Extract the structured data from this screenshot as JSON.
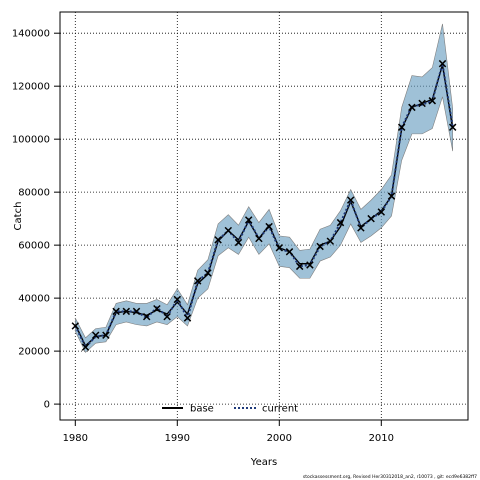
{
  "chart_data": {
    "type": "line",
    "title": "",
    "xlabel": "Years",
    "ylabel": "Catch",
    "xlim": [
      1978.5,
      2018.5
    ],
    "ylim": [
      -6000,
      148000
    ],
    "x_ticks": [
      1980,
      1990,
      2000,
      2010
    ],
    "y_ticks": [
      0,
      20000,
      40000,
      60000,
      80000,
      100000,
      120000,
      140000
    ],
    "grid": true,
    "legend_position": "bottom-center",
    "x": [
      1980,
      1981,
      1982,
      1983,
      1984,
      1985,
      1986,
      1987,
      1988,
      1989,
      1990,
      1991,
      1992,
      1993,
      1994,
      1995,
      1996,
      1997,
      1998,
      1999,
      2000,
      2001,
      2002,
      2003,
      2004,
      2005,
      2006,
      2007,
      2008,
      2009,
      2010,
      2011,
      2012,
      2013,
      2014,
      2015,
      2016,
      2017
    ],
    "series": [
      {
        "name": "base",
        "line_style": "solid",
        "color": "#000000",
        "values": [
          30000,
          22000,
          25500,
          26000,
          34500,
          35000,
          34500,
          33500,
          35500,
          34000,
          38500,
          34000,
          45500,
          49000,
          61500,
          65500,
          62000,
          69000,
          62500,
          67500,
          59000,
          57500,
          53000,
          53000,
          60000,
          61500,
          67000,
          76500,
          67000,
          70000,
          73000,
          78500,
          104000,
          112000,
          113500,
          115000,
          128000,
          104000
        ]
      },
      {
        "name": "current",
        "line_style": "dotted",
        "color": "#1f3a7a",
        "values": [
          29500,
          21500,
          25500,
          26000,
          35000,
          35000,
          35000,
          32500,
          36500,
          33000,
          39500,
          32500,
          46500,
          49500,
          62000,
          65500,
          61000,
          69500,
          62500,
          67000,
          58500,
          57500,
          52000,
          52500,
          59500,
          61500,
          68500,
          77000,
          66500,
          70000,
          72500,
          78500,
          104500,
          112500,
          113000,
          114500,
          128500,
          104500
        ]
      }
    ],
    "band": {
      "color": "#6b9fc1",
      "edge_color": "#7f7f7f",
      "lower": [
        27500,
        19500,
        23000,
        23500,
        30000,
        31000,
        30000,
        29500,
        31000,
        30000,
        33000,
        29500,
        40000,
        43500,
        56000,
        59000,
        56500,
        63000,
        56500,
        60500,
        52000,
        51500,
        47500,
        47500,
        54000,
        55500,
        60000,
        68000,
        61000,
        63500,
        66500,
        71000,
        92000,
        102000,
        102000,
        104000,
        116000,
        95500
      ],
      "upper": [
        32500,
        25000,
        28500,
        29000,
        38000,
        39000,
        38000,
        38000,
        39500,
        37500,
        43500,
        37500,
        50500,
        54500,
        68000,
        71500,
        67500,
        74500,
        68500,
        73500,
        63500,
        63000,
        58000,
        58500,
        66000,
        67500,
        73000,
        81000,
        73500,
        77000,
        81000,
        86500,
        112000,
        124000,
        123500,
        127000,
        143500,
        111500
      ]
    },
    "markers": {
      "symbol": "x",
      "values": [
        29500,
        21500,
        26000,
        26000,
        35000,
        35000,
        35000,
        33000,
        36000,
        33000,
        39500,
        32500,
        46500,
        49500,
        62000,
        65500,
        61000,
        69500,
        62500,
        67000,
        59000,
        57500,
        52000,
        52500,
        59500,
        61500,
        68500,
        77000,
        66500,
        70000,
        72500,
        78500,
        104500,
        112000,
        113500,
        114500,
        128500,
        104500
      ]
    },
    "footnote": "stockassessment.org, Revised Her30312018_an2, r10073 , git: ecd9e6382ff7"
  }
}
